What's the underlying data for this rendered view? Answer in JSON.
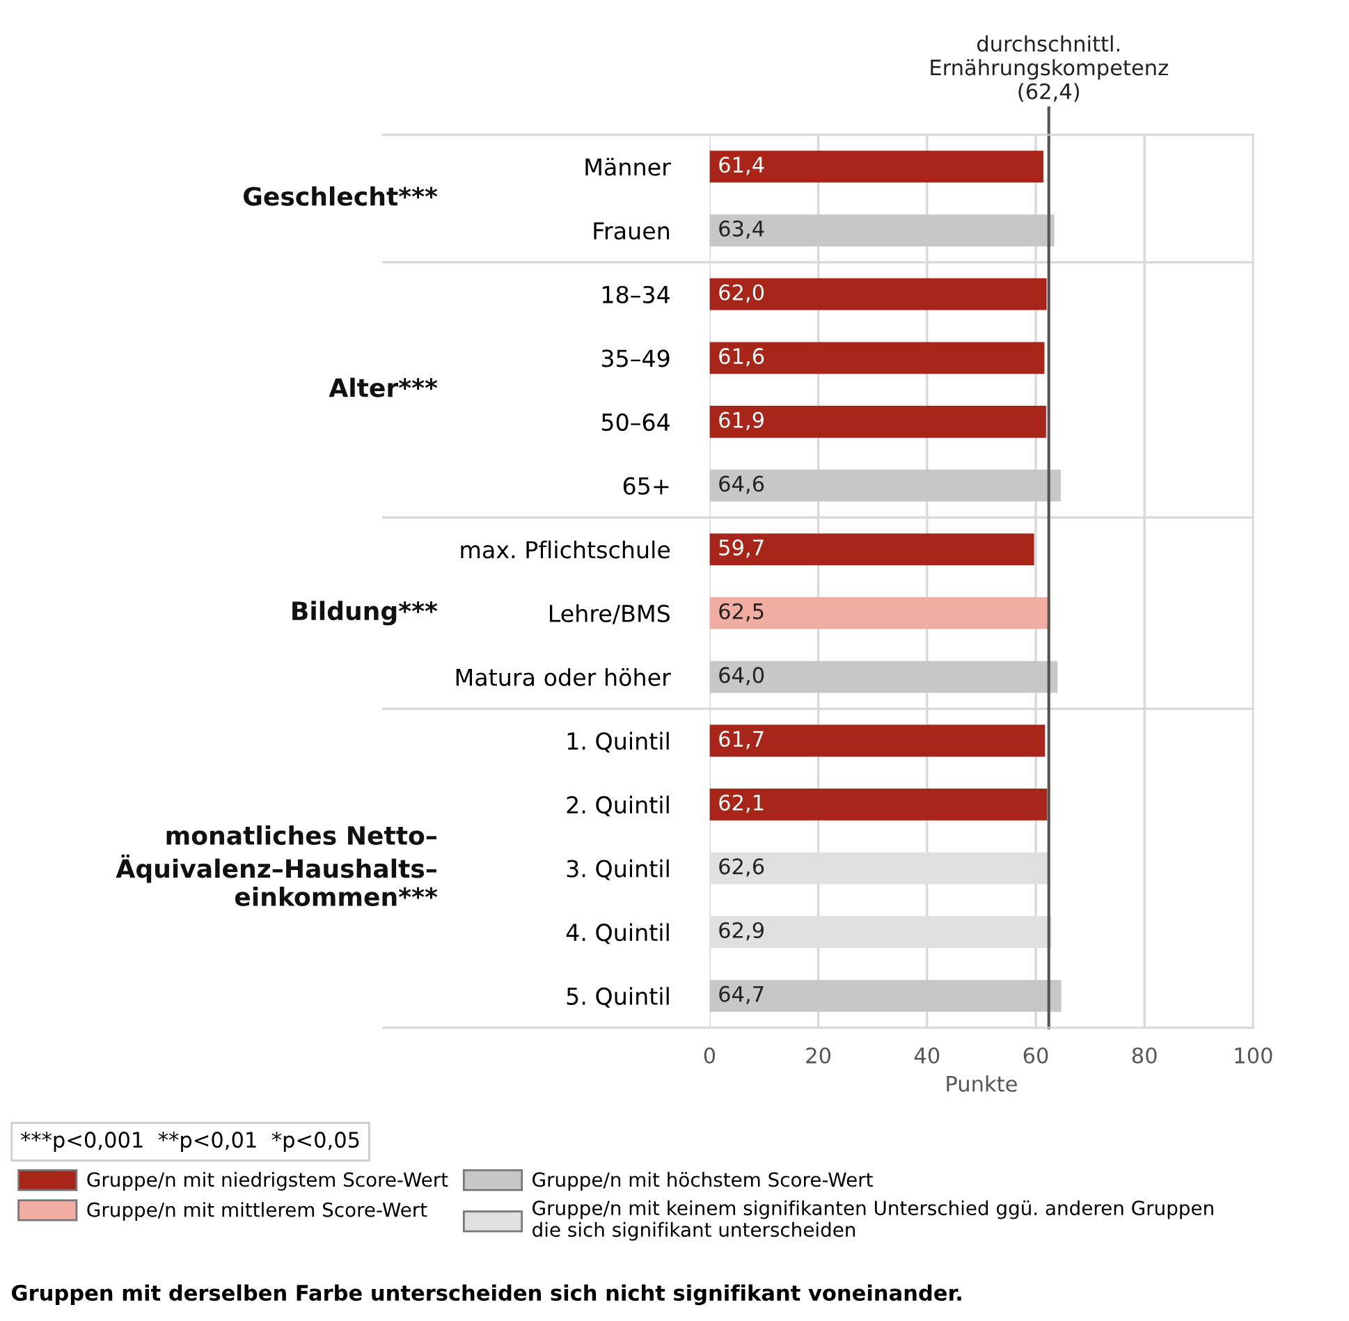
{
  "chart_data": {
    "type": "bar",
    "orientation": "horizontal",
    "categories": [
      "Männer",
      "Frauen",
      "18–34",
      "35–49",
      "50–64",
      "65+",
      "max. Pflichtschule",
      "Lehre/BMS",
      "Matura oder höher",
      "1. Quintil",
      "2. Quintil",
      "3. Quintil",
      "4. Quintil",
      "5. Quintil"
    ],
    "series": [
      {
        "name": "Gruppe/n mit niedrigstem Score-Wert",
        "color": "#a8251a",
        "values": [
          61.4,
          null,
          62.0,
          61.6,
          61.9,
          null,
          59.7,
          null,
          null,
          61.7,
          62.1,
          null,
          null,
          null
        ],
        "value_labels": [
          "61,4",
          null,
          "62,0",
          "61,6",
          "61,9",
          null,
          "59,7",
          null,
          null,
          "61,7",
          "62,1",
          null,
          null,
          null
        ]
      },
      {
        "name": "Gruppe/n mit mittlerem Score-Wert",
        "color": "#f2ada3",
        "values": [
          null,
          null,
          null,
          null,
          null,
          null,
          null,
          62.5,
          null,
          null,
          null,
          null,
          null,
          null
        ],
        "value_labels": [
          null,
          null,
          null,
          null,
          null,
          null,
          null,
          "62,5",
          null,
          null,
          null,
          null,
          null,
          null
        ]
      },
      {
        "name": "Gruppe/n mit höchstem Score-Wert",
        "color": "#c5c8c6",
        "values": [
          null,
          63.4,
          null,
          null,
          null,
          64.6,
          null,
          null,
          64.0,
          null,
          null,
          null,
          null,
          64.7
        ],
        "value_labels": [
          null,
          "63,4",
          null,
          null,
          null,
          "64,6",
          null,
          null,
          "64,0",
          null,
          null,
          null,
          null,
          "64,7"
        ]
      },
      {
        "name": "Gruppe/n mit keinem signifikanten Unterschied ggü. anderen Gruppen\ndie sich signifikant unterscheiden",
        "color": "#dfe1e0",
        "values": [
          null,
          null,
          null,
          null,
          null,
          null,
          null,
          null,
          null,
          null,
          null,
          62.6,
          62.9,
          null
        ],
        "value_labels": [
          null,
          null,
          null,
          null,
          null,
          null,
          null,
          null,
          null,
          null,
          null,
          "62,6",
          "62,9",
          null
        ]
      }
    ],
    "xlim": [
      0,
      100
    ],
    "xticks": [
      0,
      20,
      40,
      60,
      80,
      100
    ],
    "xlabel": "Punkte",
    "grid": "x",
    "legend": "bottom",
    "ref_lines": [
      {
        "axis": "x",
        "value": 62.4,
        "label": "durchschnittl.\nErnährungskompetenz\n(62,4)",
        "color": "#555555"
      }
    ],
    "annotations": [
      "Geschlecht***",
      "Alter***",
      "Bildung***",
      "monatliches Netto–\nÄquivalenz–Haushalts–\neinkommen***",
      "***p<0,001  **p<0,01  *p<0,05",
      "Gruppen mit derselben Farbe unterscheiden sich nicht signifikant voneinander."
    ]
  }
}
